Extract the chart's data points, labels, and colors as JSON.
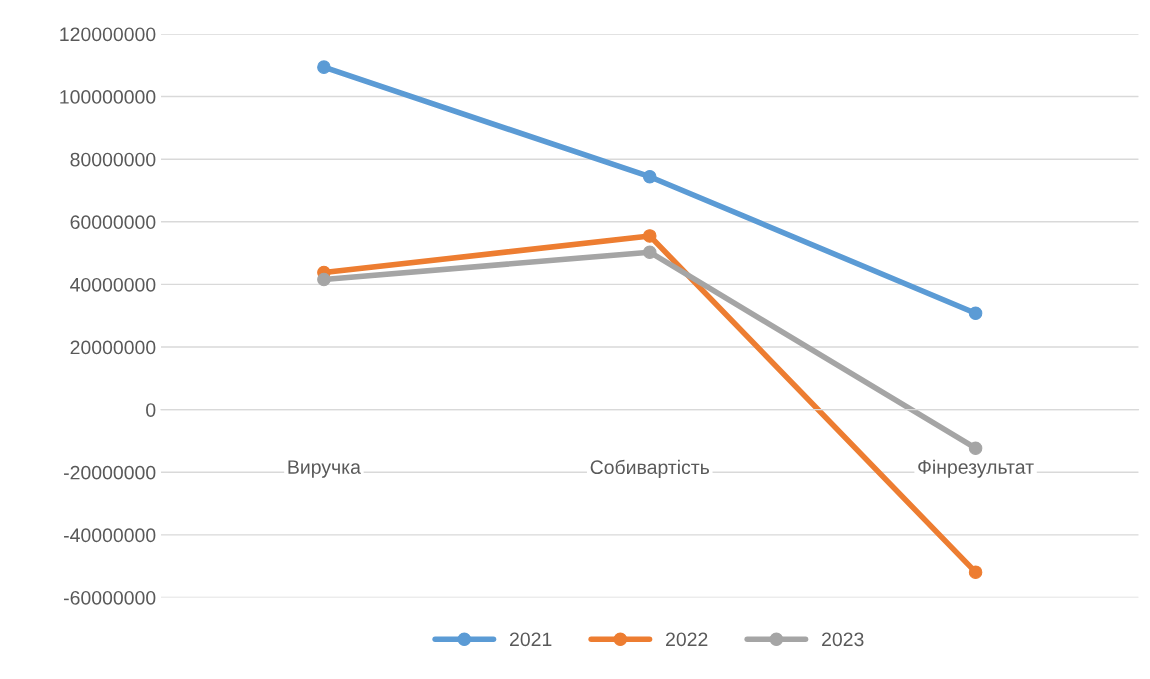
{
  "chart_data": {
    "type": "line",
    "categories": [
      "Виручка",
      "Собивартість",
      "Фінрезультат"
    ],
    "series": [
      {
        "name": "2021",
        "color": "#5b9bd5",
        "values": [
          109400000,
          74400000,
          30800000
        ]
      },
      {
        "name": "2022",
        "color": "#ed7d31",
        "values": [
          43800000,
          55500000,
          -51900000
        ]
      },
      {
        "name": "2023",
        "color": "#a5a5a5",
        "values": [
          41600000,
          50300000,
          -12300000
        ]
      }
    ],
    "ylim": [
      -60000000,
      120000000
    ],
    "yticks": [
      -60000000,
      -40000000,
      -20000000,
      0,
      20000000,
      40000000,
      60000000,
      80000000,
      100000000,
      120000000
    ],
    "grid": "y",
    "legend": "bottom",
    "marker": "circle",
    "line_style": "solid"
  }
}
